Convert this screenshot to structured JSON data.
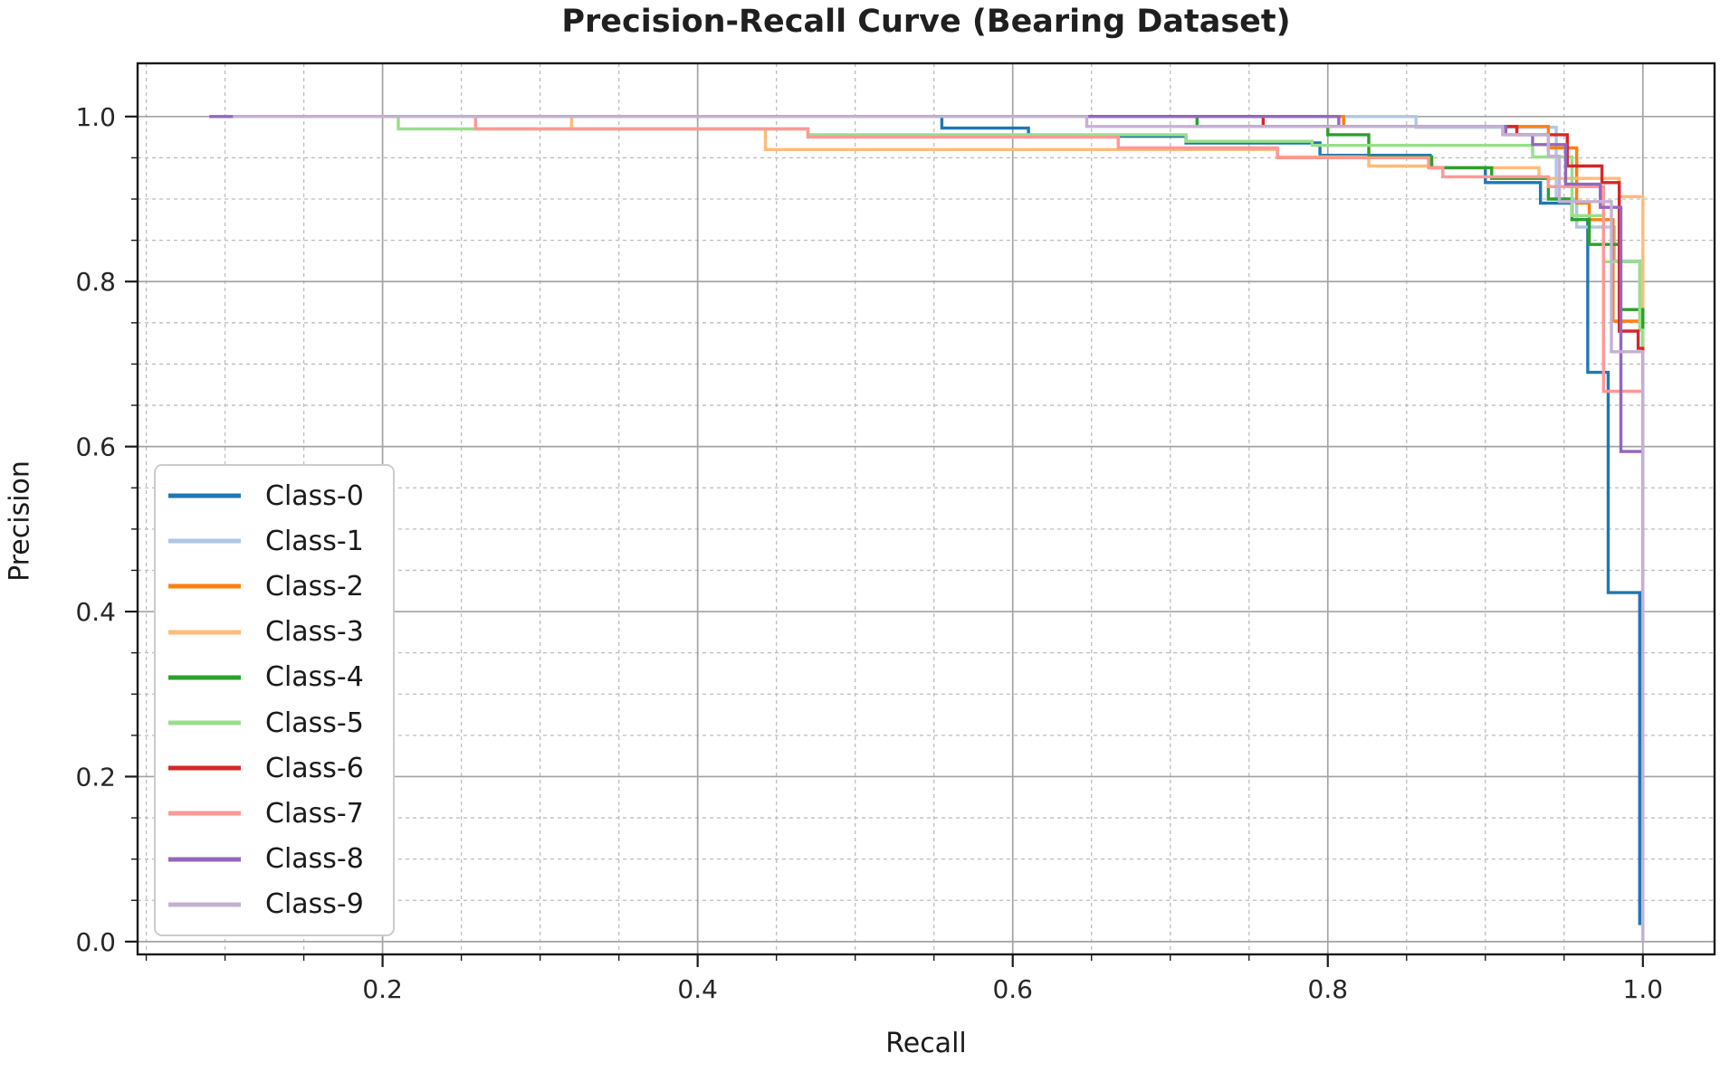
{
  "chart_data": {
    "type": "line",
    "curve_style": "steps-post",
    "title": "Precision-Recall Curve (Bearing Dataset)",
    "xlabel": "Recall",
    "ylabel": "Precision",
    "x_ticks": [
      0.2,
      0.4,
      0.6,
      0.8,
      1.0
    ],
    "y_ticks": [
      0.0,
      0.2,
      0.4,
      0.6,
      0.8,
      1.0
    ],
    "minor_tick_step": 0.05,
    "xlim": [
      0.0445,
      1.0455
    ],
    "ylim": [
      -0.0155,
      1.0645
    ],
    "grid": {
      "major_solid": true,
      "minor_dashed": true
    },
    "legend_position": "lower left",
    "series": [
      {
        "name": "Class-0",
        "color": "#1f77b4",
        "points": [
          [
            0.105,
            1.0
          ],
          [
            0.555,
            0.986
          ],
          [
            0.61,
            0.976
          ],
          [
            0.71,
            0.968
          ],
          [
            0.795,
            0.953
          ],
          [
            0.865,
            0.938
          ],
          [
            0.9,
            0.92
          ],
          [
            0.935,
            0.895
          ],
          [
            0.955,
            0.875
          ],
          [
            0.965,
            0.69
          ],
          [
            0.978,
            0.423
          ],
          [
            0.998,
            0.02
          ]
        ]
      },
      {
        "name": "Class-1",
        "color": "#aec7e8",
        "points": [
          [
            0.105,
            1.0
          ],
          [
            0.856,
            0.987
          ],
          [
            0.945,
            0.9
          ],
          [
            0.958,
            0.866
          ],
          [
            0.982,
            0.825
          ],
          [
            1.0,
            0.1
          ]
        ]
      },
      {
        "name": "Class-2",
        "color": "#ff7f0e",
        "points": [
          [
            0.105,
            1.0
          ],
          [
            0.81,
            0.988
          ],
          [
            0.94,
            0.962
          ],
          [
            0.958,
            0.895
          ],
          [
            0.966,
            0.875
          ],
          [
            0.981,
            0.752
          ],
          [
            1.0,
            0.1
          ]
        ]
      },
      {
        "name": "Class-3",
        "color": "#ffbb78",
        "points": [
          [
            0.105,
            1.0
          ],
          [
            0.32,
            0.985
          ],
          [
            0.443,
            0.96
          ],
          [
            0.768,
            0.951
          ],
          [
            0.826,
            0.94
          ],
          [
            0.866,
            0.938
          ],
          [
            0.934,
            0.925
          ],
          [
            0.985,
            0.903
          ],
          [
            1.0,
            0.1
          ]
        ]
      },
      {
        "name": "Class-4",
        "color": "#2ca02c",
        "points": [
          [
            0.105,
            1.0
          ],
          [
            0.717,
            0.988
          ],
          [
            0.8,
            0.978
          ],
          [
            0.826,
            0.951
          ],
          [
            0.866,
            0.938
          ],
          [
            0.904,
            0.925
          ],
          [
            0.94,
            0.9
          ],
          [
            0.955,
            0.875
          ],
          [
            0.966,
            0.845
          ],
          [
            0.985,
            0.766
          ],
          [
            1.0,
            0.1
          ]
        ]
      },
      {
        "name": "Class-5",
        "color": "#98df8a",
        "points": [
          [
            0.105,
            1.0
          ],
          [
            0.21,
            0.985
          ],
          [
            0.47,
            0.978
          ],
          [
            0.71,
            0.97
          ],
          [
            0.79,
            0.965
          ],
          [
            0.93,
            0.951
          ],
          [
            0.955,
            0.88
          ],
          [
            0.975,
            0.824
          ],
          [
            0.998,
            0.741
          ],
          [
            1.0,
            0.1
          ]
        ]
      },
      {
        "name": "Class-6",
        "color": "#d62728",
        "points": [
          [
            0.105,
            1.0
          ],
          [
            0.759,
            0.988
          ],
          [
            0.92,
            0.978
          ],
          [
            0.952,
            0.94
          ],
          [
            0.974,
            0.92
          ],
          [
            0.985,
            0.74
          ],
          [
            0.997,
            0.719
          ],
          [
            1.0,
            0.1
          ]
        ]
      },
      {
        "name": "Class-7",
        "color": "#ff9896",
        "points": [
          [
            0.105,
            1.0
          ],
          [
            0.259,
            0.985
          ],
          [
            0.47,
            0.975
          ],
          [
            0.667,
            0.962
          ],
          [
            0.768,
            0.95
          ],
          [
            0.864,
            0.938
          ],
          [
            0.873,
            0.927
          ],
          [
            0.94,
            0.915
          ],
          [
            0.975,
            0.667
          ],
          [
            1.0,
            0.1
          ]
        ]
      },
      {
        "name": "Class-8",
        "color": "#9467bd",
        "points": [
          [
            0.09,
            1.0
          ],
          [
            0.807,
            0.988
          ],
          [
            0.913,
            0.978
          ],
          [
            0.93,
            0.966
          ],
          [
            0.951,
            0.918
          ],
          [
            0.973,
            0.89
          ],
          [
            0.986,
            0.594
          ],
          [
            1.0,
            0.1
          ]
        ]
      },
      {
        "name": "Class-9",
        "color": "#c5b0d5",
        "points": [
          [
            0.105,
            1.0
          ],
          [
            0.647,
            0.988
          ],
          [
            0.911,
            0.978
          ],
          [
            0.94,
            0.952
          ],
          [
            0.947,
            0.897
          ],
          [
            0.98,
            0.715
          ],
          [
            1.0,
            0.0
          ]
        ]
      }
    ],
    "legend_entries": [
      "Class-0",
      "Class-1",
      "Class-2",
      "Class-3",
      "Class-4",
      "Class-5",
      "Class-6",
      "Class-7",
      "Class-8",
      "Class-9"
    ]
  },
  "style": {
    "spine_color": "#1a1a1a",
    "tick_label_color": "#262626",
    "grid_major_color": "#a3a3a3",
    "grid_minor_color": "#bdbdbd",
    "background": "#ffffff"
  }
}
